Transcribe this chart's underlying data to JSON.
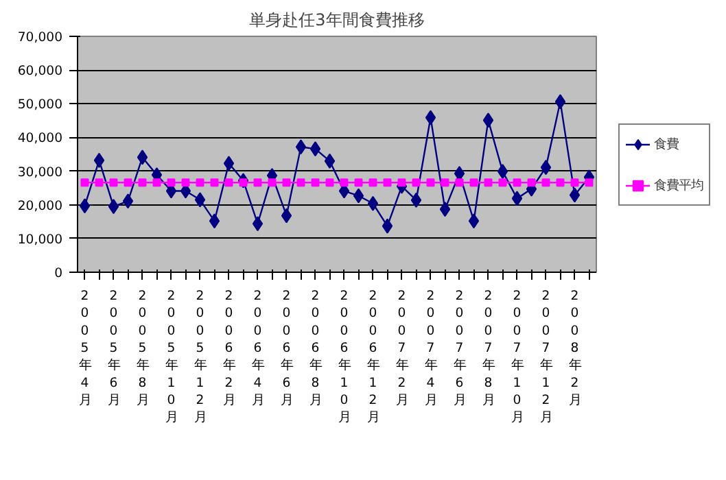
{
  "chart_data": {
    "type": "line",
    "title": "単身赴任3年間食費推移",
    "categories": [
      "2005年4月",
      null,
      "2005年6月",
      null,
      "2005年8月",
      null,
      "2005年10月",
      null,
      "2005年12月",
      null,
      "2006年2月",
      null,
      "2006年4月",
      null,
      "2006年6月",
      null,
      "2006年8月",
      null,
      "2006年10月",
      null,
      "2006年12月",
      null,
      "2007年2月",
      null,
      "2007年4月",
      null,
      "2007年6月",
      null,
      "2007年8月",
      null,
      "2007年10月",
      null,
      "2007年12月",
      null,
      "2008年2月",
      null
    ],
    "series": [
      {
        "name": "食費",
        "color": "#000080",
        "marker": "diamond",
        "values": [
          19700,
          33200,
          19500,
          21100,
          34100,
          28900,
          24100,
          24100,
          21500,
          15200,
          32300,
          27200,
          14400,
          28700,
          16800,
          37200,
          36600,
          33000,
          24100,
          22700,
          20400,
          13700,
          25500,
          21400,
          45900,
          18700,
          29300,
          15200,
          45100,
          29900,
          21900,
          24700,
          31100,
          50600,
          22900,
          28200
        ]
      },
      {
        "name": "食費平均",
        "color": "#ff00ff",
        "marker": "square",
        "values": [
          26600,
          26600,
          26600,
          26600,
          26600,
          26600,
          26600,
          26600,
          26600,
          26600,
          26600,
          26600,
          26600,
          26600,
          26600,
          26600,
          26600,
          26600,
          26600,
          26600,
          26600,
          26600,
          26600,
          26600,
          26600,
          26600,
          26600,
          26600,
          26600,
          26600,
          26600,
          26600,
          26600,
          26600,
          26600,
          26600
        ]
      }
    ],
    "ylim": [
      0,
      70000
    ],
    "yticks": [
      {
        "value": 0,
        "label": "0"
      },
      {
        "value": 10000,
        "label": "10,000"
      },
      {
        "value": 20000,
        "label": "20,000"
      },
      {
        "value": 30000,
        "label": "30,000"
      },
      {
        "value": 40000,
        "label": "40,000"
      },
      {
        "value": 50000,
        "label": "50,000"
      },
      {
        "value": 60000,
        "label": "60,000"
      },
      {
        "value": 70000,
        "label": "70,000"
      }
    ],
    "grid": "y",
    "legend": "right",
    "line_style": "solid"
  }
}
